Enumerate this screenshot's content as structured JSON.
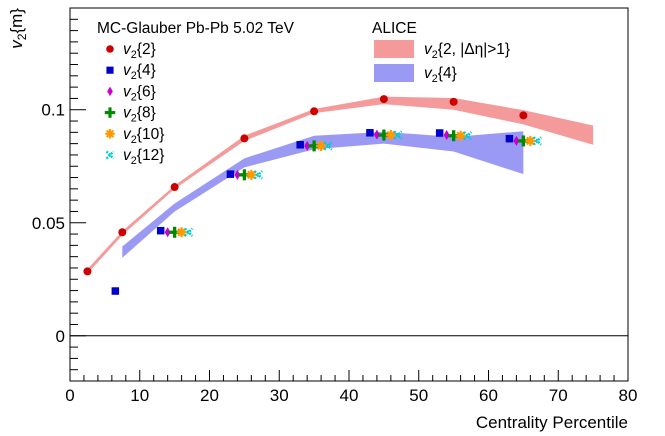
{
  "chart_data": {
    "type": "scatter",
    "xlabel": "Centrality Percentile",
    "ylabel_main": "v",
    "ylabel_sub": "2",
    "ylabel_tail": "{m}",
    "xlim": [
      0,
      80
    ],
    "ylim": [
      -0.02,
      0.145
    ],
    "x_ticks": [
      0,
      10,
      20,
      30,
      40,
      50,
      60,
      70,
      80
    ],
    "x_tick_labels": [
      "0",
      "10",
      "20",
      "30",
      "40",
      "50",
      "60",
      "70",
      "80"
    ],
    "y_ticks": [
      0,
      0.05,
      0.1
    ],
    "y_tick_labels": [
      "0",
      "0.05",
      "0.1"
    ],
    "grid": false,
    "legend_left_title": "MC-Glauber Pb-Pb 5.02 TeV",
    "legend_right_title": "ALICE",
    "legend_placement": "top",
    "series": [
      {
        "name_main": "v",
        "name_sub": "2",
        "name_tail": "{2}",
        "marker": "circle",
        "color": "#cc0000",
        "x": [
          2.5,
          7.5,
          15,
          25,
          35,
          45,
          55,
          65
        ],
        "y": [
          0.0285,
          0.0458,
          0.0658,
          0.0873,
          0.0993,
          0.1047,
          0.1035,
          0.0975
        ]
      },
      {
        "name_main": "v",
        "name_sub": "2",
        "name_tail": "{4}",
        "marker": "square",
        "color": "#0000cc",
        "x": [
          6.5,
          13,
          23,
          33,
          43,
          53,
          63
        ],
        "y": [
          0.0198,
          0.0465,
          0.0715,
          0.0845,
          0.0898,
          0.0897,
          0.0872
        ]
      },
      {
        "name_main": "v",
        "name_sub": "2",
        "name_tail": "{6}",
        "marker": "diamond",
        "color": "#cc00cc",
        "x": [
          14,
          24,
          34,
          44,
          54,
          64
        ],
        "y": [
          0.0458,
          0.0712,
          0.084,
          0.089,
          0.0888,
          0.0862
        ]
      },
      {
        "name_main": "v",
        "name_sub": "2",
        "name_tail": "{8}",
        "marker": "plus",
        "color": "#008800",
        "x": [
          15,
          25,
          35,
          45,
          55,
          65
        ],
        "y": [
          0.0458,
          0.0712,
          0.084,
          0.0888,
          0.0885,
          0.0862
        ]
      },
      {
        "name_main": "v",
        "name_sub": "2",
        "name_tail": "{10}",
        "marker": "asterisk",
        "color": "#ff9900",
        "x": [
          16,
          26,
          36,
          46,
          56,
          66
        ],
        "y": [
          0.0458,
          0.0712,
          0.084,
          0.0888,
          0.0885,
          0.0862
        ]
      },
      {
        "name_main": "v",
        "name_sub": "2",
        "name_tail": "{12}",
        "marker": "cross",
        "color": "#00cccc",
        "x": [
          17,
          27,
          37,
          47,
          57,
          67
        ],
        "y": [
          0.0458,
          0.0712,
          0.084,
          0.0888,
          0.0885,
          0.0862
        ]
      }
    ],
    "bands": [
      {
        "name_main": "v",
        "name_sub": "2",
        "name_tail": "{2, |Δη|>1}",
        "color": "#f59a9a",
        "x": [
          2.5,
          7.5,
          15,
          25,
          35,
          45,
          55,
          65,
          75
        ],
        "y_low": [
          0.0275,
          0.0445,
          0.065,
          0.0862,
          0.0985,
          0.1025,
          0.1,
          0.0935,
          0.0845
        ],
        "y_high": [
          0.0295,
          0.0463,
          0.0665,
          0.0885,
          0.1003,
          0.1058,
          0.1052,
          0.0998,
          0.093
        ]
      },
      {
        "name_main": "v",
        "name_sub": "2",
        "name_tail": "{4}",
        "color": "#9a9af5",
        "x": [
          7.5,
          15,
          25,
          35,
          45,
          55,
          65
        ],
        "y_low": [
          0.0345,
          0.055,
          0.0745,
          0.0825,
          0.085,
          0.0815,
          0.0715
        ],
        "y_high": [
          0.0395,
          0.0585,
          0.0785,
          0.0885,
          0.0902,
          0.088,
          0.0905
        ]
      }
    ]
  }
}
